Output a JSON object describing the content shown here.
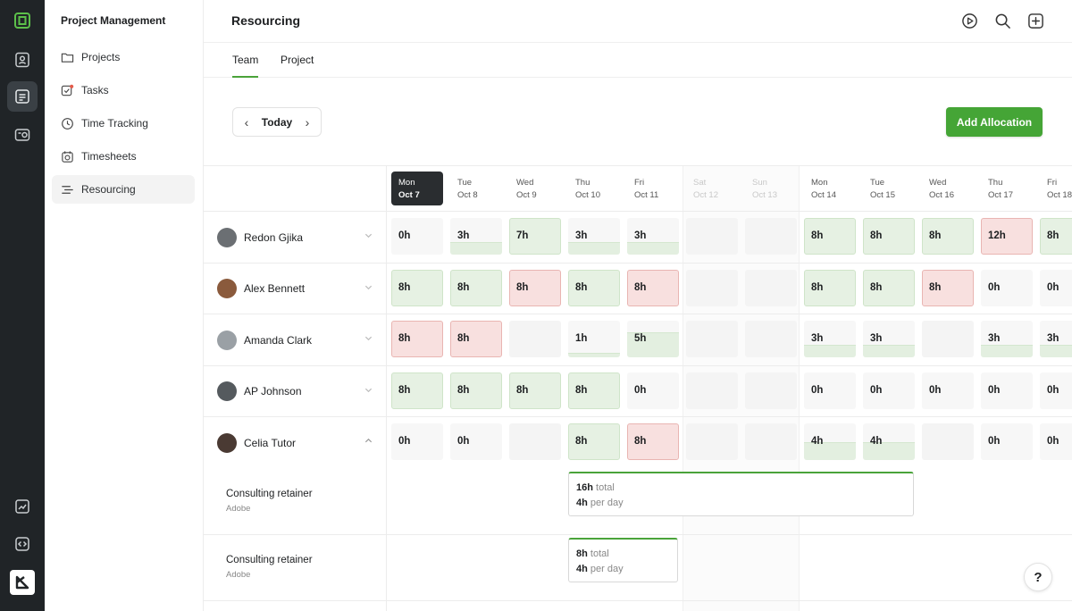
{
  "sidebar": {
    "title": "Project Management",
    "items": [
      {
        "label": "Projects",
        "icon": "folder-icon"
      },
      {
        "label": "Tasks",
        "icon": "tasks-icon"
      },
      {
        "label": "Time Tracking",
        "icon": "clock-icon"
      },
      {
        "label": "Timesheets",
        "icon": "timesheet-icon"
      },
      {
        "label": "Resourcing",
        "icon": "resourcing-icon",
        "active": true
      }
    ]
  },
  "header": {
    "title": "Resourcing"
  },
  "tabs": [
    {
      "label": "Team",
      "active": true
    },
    {
      "label": "Project",
      "active": false
    }
  ],
  "date_nav": {
    "today_label": "Today"
  },
  "toolbar": {
    "add_label": "Add Allocation"
  },
  "days": [
    {
      "dow": "Mon",
      "date": "Oct 7",
      "today": true
    },
    {
      "dow": "Tue",
      "date": "Oct 8"
    },
    {
      "dow": "Wed",
      "date": "Oct 9"
    },
    {
      "dow": "Thu",
      "date": "Oct 10"
    },
    {
      "dow": "Fri",
      "date": "Oct 11"
    },
    {
      "dow": "Sat",
      "date": "Oct 12",
      "weekend": true
    },
    {
      "dow": "Sun",
      "date": "Oct 13",
      "weekend": true
    },
    {
      "dow": "Mon",
      "date": "Oct 14"
    },
    {
      "dow": "Tue",
      "date": "Oct 15"
    },
    {
      "dow": "Wed",
      "date": "Oct 16"
    },
    {
      "dow": "Thu",
      "date": "Oct 17"
    },
    {
      "dow": "Fri",
      "date": "Oct 18"
    }
  ],
  "people": [
    {
      "name": "Redon Gjika",
      "expanded": false,
      "cells": [
        [
          "0h",
          "zero"
        ],
        [
          "3h",
          "partial"
        ],
        [
          "7h",
          "full"
        ],
        [
          "3h",
          "partial"
        ],
        [
          "3h",
          "partial"
        ],
        [
          "",
          "empty"
        ],
        [
          "",
          "empty"
        ],
        [
          "8h",
          "full"
        ],
        [
          "8h",
          "full"
        ],
        [
          "8h",
          "full"
        ],
        [
          "12h",
          "over"
        ],
        [
          "8h",
          "full"
        ]
      ]
    },
    {
      "name": "Alex Bennett",
      "expanded": false,
      "cells": [
        [
          "8h",
          "full"
        ],
        [
          "8h",
          "full"
        ],
        [
          "8h",
          "over"
        ],
        [
          "8h",
          "full"
        ],
        [
          "8h",
          "over"
        ],
        [
          "",
          "empty"
        ],
        [
          "",
          "empty"
        ],
        [
          "8h",
          "full"
        ],
        [
          "8h",
          "full"
        ],
        [
          "8h",
          "over"
        ],
        [
          "0h",
          "zero"
        ],
        [
          "0h",
          "zero"
        ]
      ]
    },
    {
      "name": "Amanda Clark",
      "expanded": false,
      "cells": [
        [
          "8h",
          "over"
        ],
        [
          "8h",
          "over"
        ],
        [
          "",
          "empty"
        ],
        [
          "1h",
          "partial"
        ],
        [
          "5h",
          "partial"
        ],
        [
          "",
          "empty"
        ],
        [
          "",
          "empty"
        ],
        [
          "3h",
          "partial"
        ],
        [
          "3h",
          "partial"
        ],
        [
          "",
          "empty"
        ],
        [
          "3h",
          "partial"
        ],
        [
          "3h",
          "partial"
        ]
      ]
    },
    {
      "name": "AP Johnson",
      "expanded": false,
      "cells": [
        [
          "8h",
          "full"
        ],
        [
          "8h",
          "full"
        ],
        [
          "8h",
          "full"
        ],
        [
          "8h",
          "full"
        ],
        [
          "0h",
          "zero"
        ],
        [
          "",
          "empty"
        ],
        [
          "",
          "empty"
        ],
        [
          "0h",
          "zero"
        ],
        [
          "0h",
          "zero"
        ],
        [
          "0h",
          "zero"
        ],
        [
          "0h",
          "zero"
        ],
        [
          "0h",
          "zero"
        ]
      ]
    },
    {
      "name": "Celia Tutor",
      "expanded": true,
      "cells": [
        [
          "0h",
          "zero"
        ],
        [
          "0h",
          "zero"
        ],
        [
          "",
          "empty"
        ],
        [
          "8h",
          "full"
        ],
        [
          "8h",
          "over"
        ],
        [
          "",
          "empty"
        ],
        [
          "",
          "empty"
        ],
        [
          "4h",
          "partial"
        ],
        [
          "4h",
          "partial"
        ],
        [
          "",
          "empty"
        ],
        [
          "0h",
          "zero"
        ],
        [
          "0h",
          "zero"
        ]
      ]
    }
  ],
  "allocations": [
    {
      "project": "Consulting retainer",
      "client": "Adobe",
      "total": "16h",
      "total_label": "total",
      "per_day": "4h",
      "per_day_label": "per day"
    },
    {
      "project": "Consulting retainer",
      "client": "Adobe",
      "total": "8h",
      "total_label": "total",
      "per_day": "4h",
      "per_day_label": "per day"
    }
  ],
  "help": {
    "label": "?"
  }
}
